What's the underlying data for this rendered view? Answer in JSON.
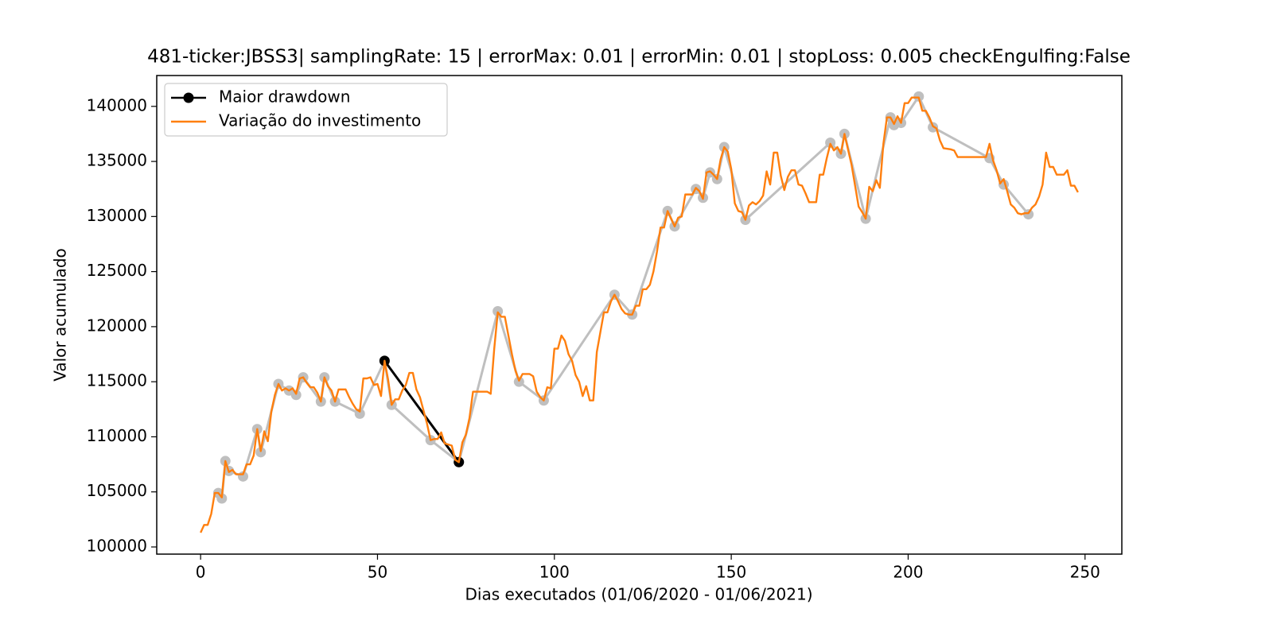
{
  "chart_data": {
    "type": "line",
    "title": "481-ticker:JBSS3| samplingRate: 15 | errorMax: 0.01 | errorMin: 0.01 | stopLoss: 0.005 checkEngulfing:False",
    "xlabel": "Dias executados (01/06/2020 - 01/06/2021)",
    "ylabel": "Valor acumulado",
    "xlim": [
      -12.4,
      260.4
    ],
    "ylim": [
      99350,
      142800
    ],
    "xticks": [
      0,
      50,
      100,
      150,
      200,
      250
    ],
    "yticks": [
      100000,
      105000,
      110000,
      115000,
      120000,
      125000,
      130000,
      135000,
      140000
    ],
    "grid": false,
    "legend": "upper left",
    "series": [
      {
        "color": "#bfbfbf",
        "marker": true,
        "x": [
          5,
          6,
          7,
          8,
          12,
          16,
          17,
          22,
          25,
          27,
          29,
          34,
          35,
          38,
          45,
          52,
          54,
          65,
          73,
          84,
          90,
          97,
          117,
          122,
          132,
          134,
          140,
          142,
          144,
          146,
          148,
          154,
          178,
          181,
          182,
          188,
          195,
          196,
          198,
          203,
          207,
          223,
          227,
          234
        ],
        "values": [
          104900,
          104400,
          107800,
          106900,
          106400,
          110700,
          108600,
          114800,
          114200,
          113800,
          115400,
          113200,
          115400,
          113200,
          112100,
          116900,
          112900,
          109700,
          107700,
          121400,
          115000,
          113300,
          122900,
          121100,
          130500,
          129100,
          132500,
          131700,
          134000,
          133400,
          136300,
          129700,
          136700,
          135700,
          137500,
          129800,
          139000,
          138300,
          138500,
          140900,
          138100,
          135300,
          132900,
          130200
        ]
      },
      {
        "name": "Maior drawdown",
        "color": "#000000",
        "marker": true,
        "x": [
          52,
          73
        ],
        "values": [
          116900,
          107700
        ]
      },
      {
        "name": "Variação do investimento",
        "color": "#ff7f0e",
        "marker": false,
        "x": [
          0,
          1,
          2,
          3,
          4,
          5,
          6,
          7,
          8,
          9,
          10,
          12,
          13,
          14,
          15,
          16,
          17,
          18,
          19,
          20,
          21,
          22,
          23,
          24,
          25,
          26,
          27,
          28,
          29,
          30,
          31,
          32,
          33,
          34,
          35,
          36,
          37,
          38,
          39,
          40,
          41,
          42,
          43,
          44,
          45,
          46,
          47,
          48,
          49,
          50,
          51,
          52,
          53,
          54,
          55,
          56,
          57,
          58,
          59,
          60,
          61,
          62,
          63,
          64,
          65,
          66,
          67,
          68,
          69,
          70,
          71,
          72,
          73,
          74,
          75,
          76,
          77,
          78,
          80,
          81,
          82,
          83,
          84,
          85,
          86,
          87,
          88,
          89,
          90,
          91,
          93,
          94,
          95,
          96,
          97,
          98,
          99,
          100,
          101,
          102,
          103,
          104,
          105,
          106,
          107,
          108,
          109,
          110,
          111,
          112,
          113,
          114,
          115,
          116,
          117,
          118,
          119,
          120,
          121,
          122,
          123,
          124,
          125,
          126,
          127,
          128,
          129,
          130,
          131,
          132,
          133,
          134,
          135,
          136,
          137,
          138,
          139,
          140,
          141,
          142,
          143,
          144,
          145,
          146,
          147,
          148,
          149,
          150,
          151,
          152,
          153,
          154,
          155,
          156,
          157,
          158,
          159,
          160,
          161,
          162,
          163,
          164,
          165,
          166,
          167,
          168,
          169,
          170,
          171,
          172,
          173,
          174,
          175,
          176,
          177,
          178,
          179,
          180,
          181,
          182,
          183,
          184,
          185,
          186,
          187,
          188,
          189,
          190,
          191,
          192,
          193,
          194,
          195,
          196,
          197,
          198,
          199,
          200,
          201,
          202,
          203,
          204,
          205,
          206,
          207,
          208,
          209,
          210,
          212,
          213,
          214,
          222,
          223,
          224,
          225,
          226,
          227,
          228,
          229,
          230,
          231,
          232,
          233,
          234,
          235,
          236,
          237,
          238,
          239,
          240,
          241,
          242,
          244,
          245,
          246,
          247,
          248
        ],
        "values": [
          101300,
          102000,
          102000,
          103000,
          104900,
          104900,
          104500,
          107800,
          106800,
          107000,
          106600,
          106600,
          107500,
          107500,
          108300,
          110700,
          108700,
          110500,
          109600,
          112300,
          113800,
          114800,
          114200,
          114400,
          114200,
          114400,
          113900,
          115300,
          115400,
          114900,
          114500,
          114500,
          114000,
          113200,
          115400,
          114600,
          114200,
          113200,
          114300,
          114300,
          114300,
          113600,
          113000,
          112500,
          112300,
          115300,
          115300,
          115400,
          114700,
          114800,
          113700,
          116900,
          115200,
          112900,
          113400,
          113400,
          114200,
          114700,
          115800,
          115800,
          114300,
          113600,
          112400,
          111200,
          109700,
          109800,
          109800,
          110400,
          109400,
          109300,
          109200,
          107900,
          107700,
          109500,
          110200,
          111700,
          114100,
          114100,
          114100,
          114100,
          113900,
          118000,
          121300,
          120900,
          120900,
          119200,
          117500,
          116000,
          115100,
          115700,
          115700,
          115500,
          114100,
          113600,
          113300,
          114500,
          114400,
          118000,
          118000,
          119200,
          118700,
          117500,
          116900,
          115600,
          115000,
          113700,
          114600,
          113300,
          113300,
          117700,
          119500,
          121300,
          121300,
          122300,
          122900,
          122300,
          121600,
          121200,
          121100,
          121100,
          121900,
          121900,
          123400,
          123400,
          123800,
          125000,
          126800,
          129000,
          129000,
          130500,
          129800,
          129100,
          129900,
          130000,
          132000,
          132000,
          132000,
          132600,
          132300,
          131600,
          134000,
          134100,
          133800,
          133400,
          135200,
          136300,
          135900,
          134300,
          131200,
          130500,
          130400,
          129700,
          131000,
          131300,
          131100,
          131400,
          131900,
          134100,
          132900,
          135800,
          135800,
          133700,
          132400,
          133600,
          134200,
          134200,
          132900,
          132800,
          132100,
          131300,
          131300,
          131300,
          133800,
          133800,
          135300,
          136600,
          136000,
          136300,
          135700,
          137500,
          136100,
          134700,
          132800,
          130900,
          130400,
          129800,
          132700,
          132300,
          133300,
          132600,
          136600,
          139000,
          139000,
          138400,
          139100,
          138500,
          140300,
          140300,
          140800,
          140800,
          140800,
          139600,
          139600,
          139000,
          138200,
          138000,
          136900,
          136200,
          136100,
          136000,
          135400,
          135400,
          136600,
          135100,
          134200,
          133000,
          133400,
          132300,
          131100,
          130800,
          130300,
          130200,
          130300,
          130300,
          130800,
          131100,
          131800,
          132900,
          135800,
          134500,
          134500,
          133800,
          133800,
          134200,
          132800,
          132800,
          132200
        ]
      }
    ]
  }
}
